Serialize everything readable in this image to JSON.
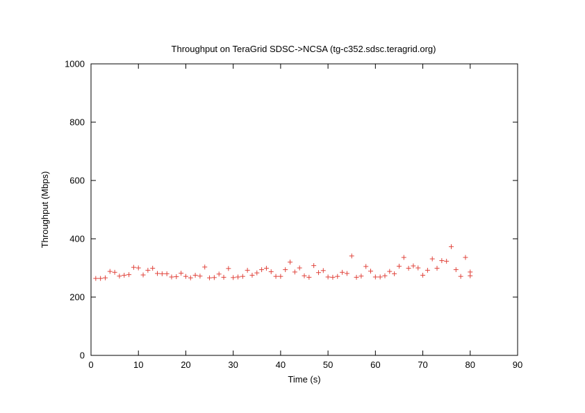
{
  "chart_data": {
    "type": "scatter",
    "title": "Throughput on TeraGrid SDSC->NCSA (tg-c352.sdsc.teragrid.org)",
    "xlabel": "Time (s)",
    "ylabel": "Throughput (Mbps)",
    "xlim": [
      0,
      90
    ],
    "ylim": [
      0,
      1000
    ],
    "x_ticks": [
      0,
      10,
      20,
      30,
      40,
      50,
      60,
      70,
      80,
      90
    ],
    "y_ticks": [
      0,
      200,
      400,
      600,
      800,
      1000
    ],
    "grid": false,
    "legend": "none",
    "marker": "+",
    "marker_color": "#e0433b",
    "series": [
      {
        "points": [
          [
            1,
            264
          ],
          [
            2,
            264
          ],
          [
            3,
            266
          ],
          [
            4,
            288
          ],
          [
            5,
            285
          ],
          [
            6,
            272
          ],
          [
            7,
            275
          ],
          [
            8,
            277
          ],
          [
            9,
            302
          ],
          [
            10,
            300
          ],
          [
            11,
            276
          ],
          [
            12,
            292
          ],
          [
            13,
            299
          ],
          [
            14,
            281
          ],
          [
            15,
            280
          ],
          [
            16,
            280
          ],
          [
            17,
            269
          ],
          [
            18,
            270
          ],
          [
            19,
            282
          ],
          [
            20,
            271
          ],
          [
            21,
            266
          ],
          [
            22,
            275
          ],
          [
            23,
            272
          ],
          [
            24,
            303
          ],
          [
            25,
            266
          ],
          [
            26,
            267
          ],
          [
            27,
            279
          ],
          [
            28,
            268
          ],
          [
            29,
            298
          ],
          [
            30,
            267
          ],
          [
            31,
            269
          ],
          [
            32,
            271
          ],
          [
            33,
            292
          ],
          [
            34,
            275
          ],
          [
            35,
            283
          ],
          [
            36,
            294
          ],
          [
            37,
            299
          ],
          [
            38,
            287
          ],
          [
            39,
            271
          ],
          [
            40,
            271
          ],
          [
            41,
            294
          ],
          [
            42,
            320
          ],
          [
            43,
            286
          ],
          [
            44,
            300
          ],
          [
            45,
            273
          ],
          [
            46,
            268
          ],
          [
            47,
            308
          ],
          [
            48,
            284
          ],
          [
            49,
            291
          ],
          [
            50,
            269
          ],
          [
            51,
            268
          ],
          [
            52,
            271
          ],
          [
            53,
            285
          ],
          [
            54,
            281
          ],
          [
            55,
            341
          ],
          [
            56,
            268
          ],
          [
            57,
            272
          ],
          [
            58,
            305
          ],
          [
            59,
            289
          ],
          [
            60,
            269
          ],
          [
            61,
            269
          ],
          [
            62,
            273
          ],
          [
            63,
            288
          ],
          [
            64,
            280
          ],
          [
            65,
            306
          ],
          [
            66,
            336
          ],
          [
            67,
            299
          ],
          [
            68,
            307
          ],
          [
            69,
            300
          ],
          [
            70,
            275
          ],
          [
            71,
            292
          ],
          [
            72,
            331
          ],
          [
            73,
            299
          ],
          [
            74,
            325
          ],
          [
            75,
            323
          ],
          [
            76,
            373
          ],
          [
            77,
            294
          ],
          [
            78,
            271
          ],
          [
            79,
            336
          ],
          [
            80,
            273
          ],
          [
            80,
            286
          ]
        ]
      }
    ]
  }
}
